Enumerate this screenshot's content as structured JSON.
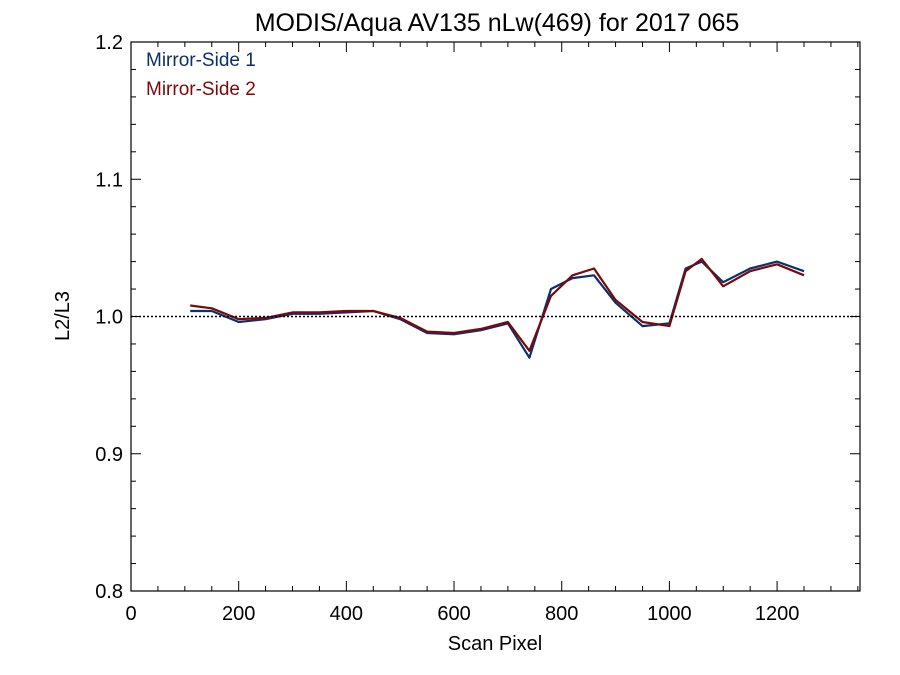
{
  "chart_data": {
    "type": "line",
    "title": "MODIS/Aqua AV135 nLw(469) for 2017 065",
    "xlabel": "Scan Pixel",
    "ylabel": "L2/L3",
    "xlim": [
      0,
      1354
    ],
    "ylim": [
      0.8,
      1.2
    ],
    "x_ticks": [
      "0",
      "200",
      "400",
      "600",
      "800",
      "1000",
      "1200"
    ],
    "y_ticks": [
      "0.8",
      "0.9",
      "1.0",
      "1.1",
      "1.2"
    ],
    "reference_line": 1.0,
    "grid": false,
    "legend_position": "top-left",
    "series": [
      {
        "name": "Mirror-Side 1",
        "color": "#0d2f6e",
        "x": [
          110,
          150,
          200,
          250,
          300,
          350,
          400,
          450,
          500,
          550,
          600,
          650,
          700,
          740,
          780,
          820,
          860,
          900,
          950,
          1000,
          1030,
          1060,
          1100,
          1150,
          1200,
          1250
        ],
        "y": [
          1.004,
          1.004,
          0.996,
          0.998,
          1.002,
          1.002,
          1.003,
          1.004,
          0.998,
          0.988,
          0.987,
          0.99,
          0.995,
          0.97,
          1.02,
          1.028,
          1.03,
          1.01,
          0.993,
          0.995,
          1.035,
          1.04,
          1.025,
          1.035,
          1.04,
          1.033
        ]
      },
      {
        "name": "Mirror-Side 2",
        "color": "#7a0a0a",
        "x": [
          110,
          150,
          200,
          250,
          300,
          350,
          400,
          450,
          500,
          550,
          600,
          650,
          700,
          740,
          780,
          820,
          860,
          900,
          950,
          1000,
          1030,
          1060,
          1100,
          1150,
          1200,
          1250
        ],
        "y": [
          1.008,
          1.006,
          0.998,
          0.999,
          1.003,
          1.003,
          1.004,
          1.004,
          0.999,
          0.989,
          0.988,
          0.991,
          0.996,
          0.975,
          1.015,
          1.03,
          1.035,
          1.012,
          0.996,
          0.993,
          1.033,
          1.042,
          1.022,
          1.033,
          1.038,
          1.03
        ]
      }
    ]
  }
}
